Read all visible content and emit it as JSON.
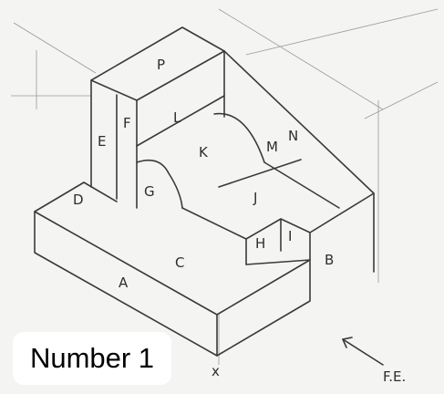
{
  "caption": "Number 1",
  "face_labels": [
    "P",
    "L",
    "F",
    "E",
    "K",
    "M",
    "N",
    "G",
    "J",
    "D",
    "H",
    "I",
    "C",
    "B",
    "A"
  ],
  "view_direction": {
    "label": "F.E.",
    "arrow": "pointing up-left toward the object"
  },
  "origin_marker": "x"
}
